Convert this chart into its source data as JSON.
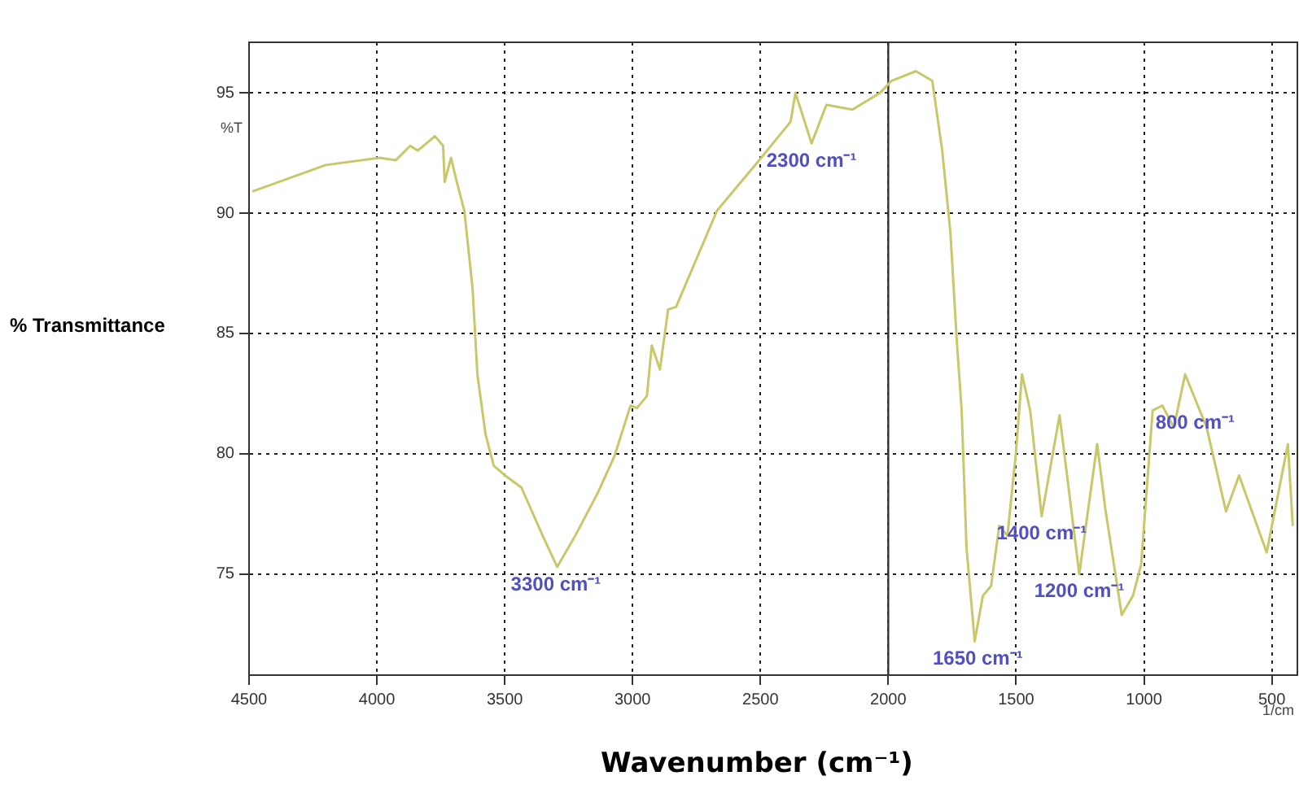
{
  "chart_data": {
    "type": "line",
    "xlabel": "Wavenumber (cm⁻¹)",
    "ylabel": "% Transmittance",
    "xlim": [
      4500,
      400
    ],
    "ylim": [
      70.8,
      97.1
    ],
    "xticks": [
      4500,
      4000,
      3500,
      3000,
      2500,
      2000,
      1500,
      1000,
      500
    ],
    "yticks": [
      75,
      80,
      85,
      90,
      95
    ],
    "grid": true,
    "legend": false,
    "marker": "none",
    "line_style": "solid",
    "ref_lines": [
      {
        "axis": "x",
        "value": 2000,
        "color": "#333333",
        "line_style": "solid"
      }
    ],
    "annotations": [
      "%T",
      "1/cm",
      {
        "text": "3300 cm⁻¹",
        "x": 3300,
        "y": 75.3
      },
      {
        "text": "2300 cm⁻¹",
        "x": 2300,
        "y": 92.9
      },
      {
        "text": "1650 cm⁻¹",
        "x": 1650,
        "y": 72.2
      },
      {
        "text": "1400 cm⁻¹",
        "x": 1400,
        "y": 77.4
      },
      {
        "text": "1200 cm⁻¹",
        "x": 1253,
        "y": 75.0
      },
      {
        "text": "800 cm⁻¹",
        "x": 800,
        "y": 82.0
      }
    ],
    "series": [
      {
        "color": "#c8c86a",
        "x": [
          4487,
          4200,
          3990,
          3926,
          3870,
          3840,
          3773,
          3741,
          3735,
          3710,
          3690,
          3658,
          3626,
          3607,
          3575,
          3543,
          3499,
          3435,
          3352,
          3295,
          3224,
          3135,
          3071,
          3008,
          2983,
          2944,
          2925,
          2893,
          2861,
          2830,
          2670,
          2497,
          2382,
          2363,
          2300,
          2242,
          2140,
          2032,
          1987,
          1892,
          1828,
          1789,
          1757,
          1732,
          1713,
          1694,
          1662,
          1630,
          1598,
          1566,
          1534,
          1502,
          1477,
          1445,
          1400,
          1330,
          1253,
          1183,
          1151,
          1087,
          1043,
          1011,
          966,
          928,
          883,
          839,
          755,
          679,
          628,
          520,
          437,
          418
        ],
        "values": [
          90.9,
          92.0,
          92.3,
          92.2,
          92.8,
          92.6,
          93.2,
          92.8,
          91.3,
          92.3,
          91.4,
          90.1,
          86.9,
          83.3,
          80.8,
          79.5,
          79.1,
          78.6,
          76.6,
          75.3,
          76.6,
          78.4,
          79.9,
          82.0,
          81.9,
          82.4,
          84.5,
          83.5,
          86.0,
          86.1,
          90.1,
          92.3,
          93.8,
          95.0,
          92.9,
          94.5,
          94.3,
          95.0,
          95.5,
          95.9,
          95.5,
          92.6,
          89.2,
          84.7,
          81.8,
          76.1,
          72.2,
          74.1,
          74.5,
          77.0,
          76.6,
          79.9,
          83.3,
          81.8,
          77.4,
          81.6,
          75.0,
          80.4,
          77.7,
          73.3,
          74.1,
          75.4,
          81.8,
          82.0,
          81.1,
          83.3,
          81.1,
          77.6,
          79.1,
          75.9,
          80.4,
          77.0
        ]
      }
    ]
  }
}
